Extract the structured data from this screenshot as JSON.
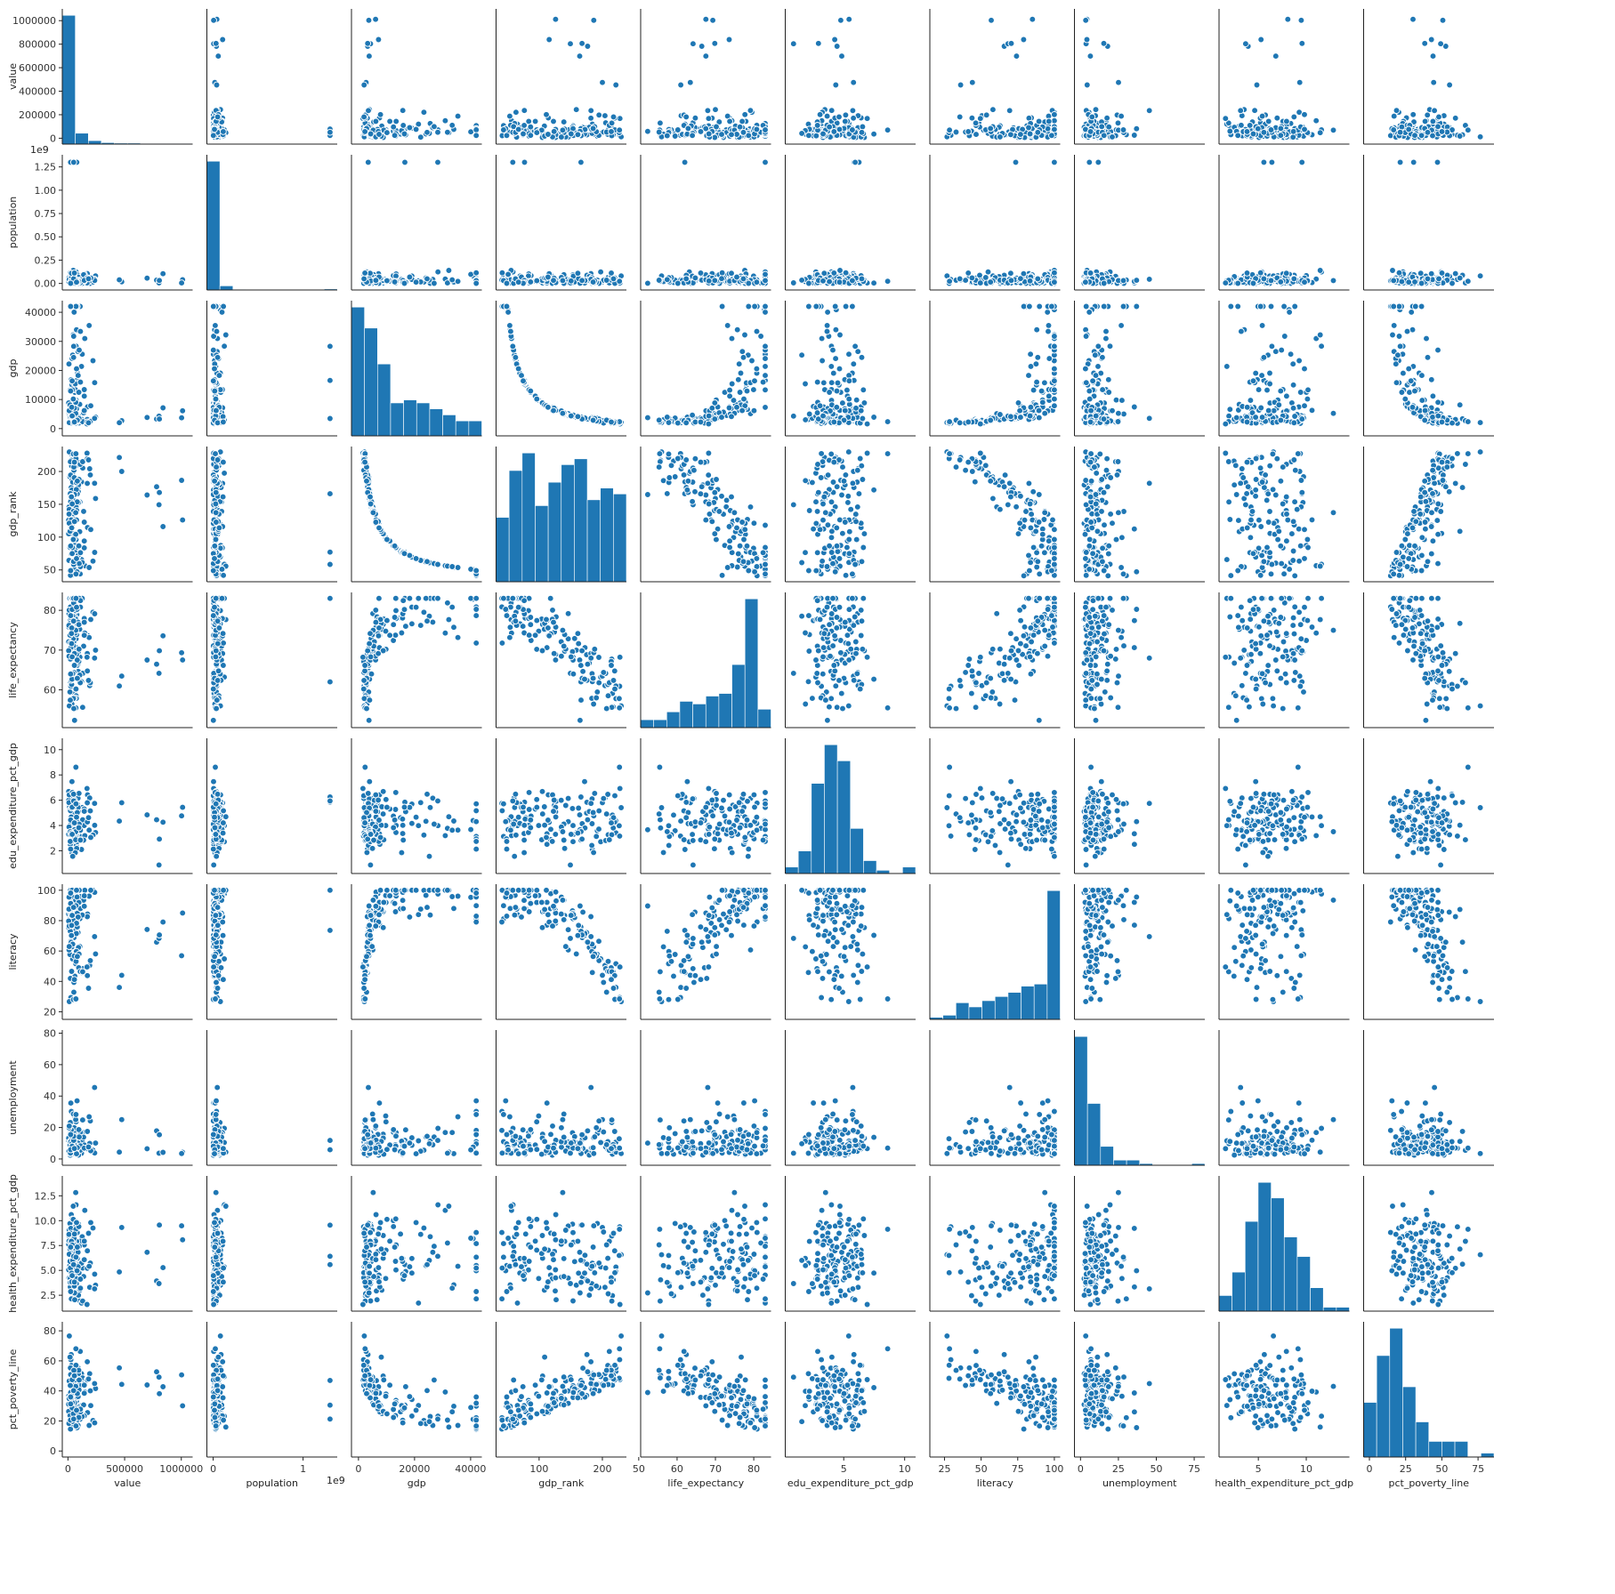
{
  "chart_data": {
    "type": "pairplot",
    "title": "",
    "colors": {
      "marker": "#1f77b4",
      "edge": "#ffffff",
      "axis": "#222222"
    },
    "variables": [
      {
        "name": "value",
        "label": "value",
        "lim": [
          -50000,
          1100000
        ],
        "ticks": [
          0,
          200000,
          400000,
          600000,
          800000,
          1000000
        ],
        "tick_labels": [
          "0",
          "200000",
          "400000",
          "600000",
          "800000",
          "1000000"
        ],
        "xticks": [
          0,
          500000,
          1000000
        ],
        "xtick_labels": [
          "0",
          "500000",
          "1000000"
        ],
        "offset": "",
        "hist": [
          260,
          22,
          7,
          3,
          2,
          2,
          1,
          1,
          1,
          1
        ]
      },
      {
        "name": "population",
        "label": "population",
        "lim": [
          -0.07,
          1.38
        ],
        "ticks": [
          0.0,
          0.25,
          0.5,
          0.75,
          1.0,
          1.25
        ],
        "tick_labels": [
          "0.00",
          "0.25",
          "0.50",
          "0.75",
          "1.00",
          "1.25"
        ],
        "xticks": [
          0.0,
          1.0
        ],
        "xtick_labels": [
          "0",
          "1"
        ],
        "offset": "1e9",
        "hist": [
          250,
          8,
          1,
          0,
          0,
          0,
          0,
          0,
          0,
          2
        ]
      },
      {
        "name": "gdp",
        "label": "gdp",
        "lim": [
          -2500,
          44000
        ],
        "ticks": [
          0,
          10000,
          20000,
          30000,
          40000
        ],
        "tick_labels": [
          "0",
          "10000",
          "20000",
          "30000",
          "40000"
        ],
        "xticks": [
          0,
          20000,
          40000
        ],
        "xtick_labels": [
          "0",
          "20000",
          "40000"
        ],
        "offset": "",
        "hist": [
          43,
          36,
          24,
          11,
          12,
          11,
          9,
          7,
          5,
          5
        ]
      },
      {
        "name": "gdp_rank",
        "label": "gdp_rank",
        "lim": [
          32,
          238
        ],
        "ticks": [
          50,
          100,
          150,
          200
        ],
        "tick_labels": [
          "50",
          "100",
          "150",
          "200"
        ],
        "xticks": [
          100,
          200
        ],
        "xtick_labels": [
          "100",
          "200"
        ],
        "offset": "",
        "hist": [
          11,
          19,
          22,
          13,
          17,
          20,
          21,
          14,
          16,
          15
        ]
      },
      {
        "name": "life_expectancy",
        "label": "life_expectancy",
        "lim": [
          50.5,
          84.5
        ],
        "ticks": [
          50,
          60,
          70,
          80
        ],
        "tick_labels": [
          "50",
          "60",
          "70",
          "80"
        ],
        "xticks": [
          50,
          60,
          70,
          80
        ],
        "xtick_labels": [
          "50",
          "60",
          "70",
          "80"
        ],
        "offset": "",
        "hist": [
          3,
          3,
          6,
          10,
          9,
          12,
          13,
          24,
          49,
          7
        ]
      },
      {
        "name": "edu_expenditure_pct_gdp",
        "label": "edu_expenditure_pct_gdp",
        "lim": [
          0.2,
          10.9
        ],
        "ticks": [
          2,
          4,
          6,
          8,
          10
        ],
        "tick_labels": [
          "2",
          "4",
          "6",
          "8",
          "10"
        ],
        "xticks": [
          5,
          10
        ],
        "xtick_labels": [
          "5",
          "10"
        ],
        "offset": "",
        "hist": [
          2,
          7,
          28,
          40,
          35,
          14,
          4,
          1,
          0,
          2
        ]
      },
      {
        "name": "literacy",
        "label": "literacy",
        "lim": [
          15,
          104
        ],
        "ticks": [
          20,
          40,
          60,
          80,
          100
        ],
        "tick_labels": [
          "20",
          "40",
          "60",
          "80",
          "100"
        ],
        "xticks": [
          25,
          50,
          75,
          100
        ],
        "xtick_labels": [
          "25",
          "50",
          "75",
          "100"
        ],
        "offset": "",
        "hist": [
          1,
          2,
          8,
          6,
          9,
          11,
          13,
          16,
          17,
          62
        ]
      },
      {
        "name": "unemployment",
        "label": "unemployment",
        "lim": [
          -4,
          82
        ],
        "ticks": [
          0,
          20,
          40,
          60,
          80
        ],
        "tick_labels": [
          "0",
          "20",
          "40",
          "60",
          "80"
        ],
        "xticks": [
          0,
          25,
          50,
          75
        ],
        "xtick_labels": [
          "0",
          "25",
          "50",
          "75"
        ],
        "offset": "",
        "hist": [
          75,
          36,
          11,
          3,
          3,
          1,
          0,
          0,
          0,
          1
        ]
      },
      {
        "name": "health_expenditure_pct_gdp",
        "label": "health_expenditure_pct_gdp",
        "lim": [
          0.9,
          14.5
        ],
        "ticks": [
          2.5,
          5.0,
          7.5,
          10.0,
          12.5
        ],
        "tick_labels": [
          "2.5",
          "5.0",
          "7.5",
          "10.0",
          "12.5"
        ],
        "xticks": [
          5,
          10
        ],
        "xtick_labels": [
          "5",
          "10"
        ],
        "offset": "",
        "hist": [
          4,
          10,
          23,
          33,
          29,
          19,
          14,
          6,
          1,
          1
        ]
      },
      {
        "name": "pct_poverty_line",
        "label": "pct_poverty_line",
        "lim": [
          -4,
          86
        ],
        "ticks": [
          0,
          20,
          40,
          60,
          80
        ],
        "tick_labels": [
          "0",
          "20",
          "40",
          "60",
          "80"
        ],
        "xticks": [
          0,
          25,
          50,
          75
        ],
        "xtick_labels": [
          "0",
          "25",
          "50",
          "75"
        ],
        "offset": "",
        "hist": [
          14,
          26,
          33,
          18,
          9,
          4,
          4,
          4,
          0,
          1
        ]
      }
    ]
  }
}
